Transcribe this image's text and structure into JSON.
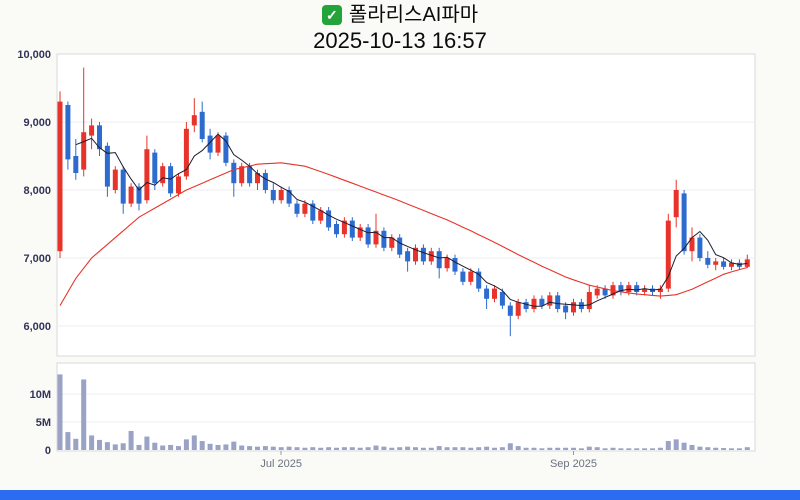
{
  "header": {
    "title": "폴라리스AI파마",
    "datetime": "2025-10-13 16:57",
    "check_glyph": "✓"
  },
  "colors": {
    "up": "#e8332a",
    "down": "#2d6bce",
    "ma_short": "#1c1c30",
    "ma_long": "#e8332a",
    "volume": "#9aa3c6",
    "grid": "#ececf1",
    "panel_border": "#d9d9de",
    "check_green": "#23a33a",
    "footer_bar": "#2b6cf0",
    "background": "#fafaf6"
  },
  "chart_data": {
    "type": "candlestick",
    "title": "폴라리스AI파마",
    "subtitle": "2025-10-13 16:57",
    "ylim": [
      5560,
      10060
    ],
    "volume_ylim_millions": [
      0,
      15.5
    ],
    "volume_unit": "millions of shares",
    "grid": true,
    "y_ticks": [
      {
        "label": "10,000",
        "value": 10000
      },
      {
        "label": "9,000",
        "value": 9000
      },
      {
        "label": "8,000",
        "value": 8000
      },
      {
        "label": "7,000",
        "value": 7000
      },
      {
        "label": "6,000",
        "value": 6000
      }
    ],
    "volume_ticks": [
      {
        "label": "10M",
        "value": 10
      },
      {
        "label": "5M",
        "value": 5
      },
      {
        "label": "0",
        "value": 0
      }
    ],
    "x_ticks": [
      {
        "label": "Jul 2025",
        "index": 28
      },
      {
        "label": "Sep 2025",
        "index": 65
      }
    ],
    "lines": [
      {
        "name": "short-term moving average",
        "color_key": "ma_short"
      },
      {
        "name": "long-term moving average",
        "color_key": "ma_long"
      }
    ],
    "ma_short_window": 5,
    "ma_long_anchors": [
      [
        0,
        6300
      ],
      [
        2,
        6700
      ],
      [
        4,
        7000
      ],
      [
        7,
        7300
      ],
      [
        10,
        7600
      ],
      [
        13,
        7800
      ],
      [
        16,
        8000
      ],
      [
        19,
        8150
      ],
      [
        22,
        8300
      ],
      [
        25,
        8380
      ],
      [
        28,
        8400
      ],
      [
        31,
        8350
      ],
      [
        34,
        8230
      ],
      [
        37,
        8100
      ],
      [
        40,
        7970
      ],
      [
        43,
        7840
      ],
      [
        46,
        7700
      ],
      [
        49,
        7560
      ],
      [
        52,
        7400
      ],
      [
        55,
        7230
      ],
      [
        58,
        7050
      ],
      [
        61,
        6880
      ],
      [
        64,
        6720
      ],
      [
        67,
        6600
      ],
      [
        70,
        6520
      ],
      [
        73,
        6470
      ],
      [
        76,
        6440
      ],
      [
        78,
        6460
      ],
      [
        80,
        6540
      ],
      [
        82,
        6650
      ],
      [
        84,
        6760
      ],
      [
        86,
        6830
      ],
      [
        87,
        6860
      ]
    ],
    "candles": [
      [
        7100,
        9450,
        7000,
        9300
      ],
      [
        9250,
        9300,
        8300,
        8450
      ],
      [
        8500,
        8750,
        8150,
        8250
      ],
      [
        8300,
        9800,
        8200,
        8850
      ],
      [
        8800,
        9050,
        8600,
        8950
      ],
      [
        8950,
        9000,
        8500,
        8600
      ],
      [
        8650,
        8700,
        7900,
        8050
      ],
      [
        8000,
        8350,
        7950,
        8300
      ],
      [
        8300,
        8350,
        7650,
        7800
      ],
      [
        7800,
        8100,
        7750,
        8050
      ],
      [
        8050,
        8100,
        7700,
        7800
      ],
      [
        7850,
        8800,
        7800,
        8600
      ],
      [
        8550,
        8600,
        8000,
        8100
      ],
      [
        8100,
        8400,
        8050,
        8350
      ],
      [
        8350,
        8400,
        7900,
        7950
      ],
      [
        7950,
        8250,
        7900,
        8200
      ],
      [
        8200,
        9000,
        8150,
        8900
      ],
      [
        8950,
        9350,
        8850,
        9100
      ],
      [
        9150,
        9300,
        8700,
        8750
      ],
      [
        8800,
        8900,
        8450,
        8550
      ],
      [
        8550,
        8850,
        8500,
        8800
      ],
      [
        8800,
        8850,
        8350,
        8400
      ],
      [
        8400,
        8450,
        7900,
        8100
      ],
      [
        8100,
        8400,
        8050,
        8350
      ],
      [
        8350,
        8400,
        8050,
        8100
      ],
      [
        8100,
        8300,
        8000,
        8250
      ],
      [
        8250,
        8300,
        7950,
        8000
      ],
      [
        8000,
        8100,
        7800,
        7850
      ],
      [
        7850,
        8050,
        7800,
        8000
      ],
      [
        8000,
        8050,
        7750,
        7800
      ],
      [
        7800,
        7850,
        7600,
        7650
      ],
      [
        7650,
        7850,
        7600,
        7800
      ],
      [
        7800,
        7850,
        7500,
        7550
      ],
      [
        7550,
        7750,
        7500,
        7700
      ],
      [
        7700,
        7750,
        7400,
        7450
      ],
      [
        7500,
        7550,
        7300,
        7350
      ],
      [
        7350,
        7600,
        7300,
        7550
      ],
      [
        7550,
        7600,
        7250,
        7300
      ],
      [
        7300,
        7500,
        7250,
        7450
      ],
      [
        7450,
        7500,
        7150,
        7200
      ],
      [
        7200,
        7650,
        7150,
        7400
      ],
      [
        7400,
        7450,
        7100,
        7150
      ],
      [
        7150,
        7350,
        7100,
        7300
      ],
      [
        7300,
        7350,
        7000,
        7050
      ],
      [
        7100,
        7150,
        6800,
        6950
      ],
      [
        6950,
        7200,
        6900,
        7150
      ],
      [
        7150,
        7200,
        6900,
        6950
      ],
      [
        6950,
        7150,
        6900,
        7100
      ],
      [
        7100,
        7150,
        6700,
        6850
      ],
      [
        6850,
        7050,
        6800,
        7000
      ],
      [
        7000,
        7050,
        6750,
        6800
      ],
      [
        6800,
        6850,
        6600,
        6650
      ],
      [
        6650,
        6850,
        6600,
        6800
      ],
      [
        6800,
        6850,
        6500,
        6550
      ],
      [
        6550,
        6600,
        6250,
        6400
      ],
      [
        6400,
        6600,
        6350,
        6550
      ],
      [
        6500,
        6550,
        6250,
        6300
      ],
      [
        6300,
        6350,
        5850,
        6150
      ],
      [
        6150,
        6400,
        6100,
        6350
      ],
      [
        6350,
        6400,
        6200,
        6250
      ],
      [
        6250,
        6450,
        6200,
        6400
      ],
      [
        6400,
        6450,
        6250,
        6300
      ],
      [
        6300,
        6500,
        6250,
        6450
      ],
      [
        6450,
        6500,
        6200,
        6250
      ],
      [
        6300,
        6350,
        6100,
        6200
      ],
      [
        6200,
        6400,
        6150,
        6350
      ],
      [
        6350,
        6400,
        6200,
        6250
      ],
      [
        6250,
        6600,
        6200,
        6500
      ],
      [
        6450,
        6600,
        6400,
        6550
      ],
      [
        6550,
        6600,
        6400,
        6450
      ],
      [
        6450,
        6650,
        6400,
        6600
      ],
      [
        6600,
        6650,
        6450,
        6500
      ],
      [
        6500,
        6650,
        6450,
        6600
      ],
      [
        6600,
        6650,
        6450,
        6500
      ],
      [
        6500,
        6600,
        6450,
        6550
      ],
      [
        6550,
        6600,
        6450,
        6500
      ],
      [
        6500,
        6600,
        6400,
        6550
      ],
      [
        6550,
        7650,
        6500,
        7550
      ],
      [
        7600,
        8150,
        7450,
        8000
      ],
      [
        7950,
        8000,
        7050,
        7100
      ],
      [
        7100,
        7450,
        6950,
        7300
      ],
      [
        7300,
        7350,
        6950,
        7000
      ],
      [
        7000,
        7100,
        6850,
        6900
      ],
      [
        6900,
        7000,
        6820,
        6950
      ],
      [
        6950,
        7000,
        6830,
        6870
      ],
      [
        6870,
        6980,
        6820,
        6930
      ],
      [
        6930,
        6980,
        6830,
        6870
      ],
      [
        6870,
        7050,
        6850,
        6980
      ]
    ],
    "volumes_millions": [
      13.5,
      3.2,
      2.0,
      12.6,
      2.6,
      1.8,
      1.4,
      1.0,
      1.2,
      3.4,
      0.9,
      2.4,
      1.3,
      0.8,
      0.9,
      0.7,
      1.9,
      2.6,
      1.6,
      1.1,
      0.9,
      1.0,
      1.5,
      0.8,
      0.7,
      0.6,
      0.7,
      0.6,
      0.5,
      0.6,
      0.5,
      0.4,
      0.5,
      0.4,
      0.5,
      0.4,
      0.5,
      0.5,
      0.4,
      0.5,
      0.8,
      0.6,
      0.4,
      0.5,
      0.6,
      0.5,
      0.4,
      0.4,
      0.7,
      0.5,
      0.5,
      0.5,
      0.4,
      0.5,
      0.6,
      0.4,
      0.5,
      1.2,
      0.7,
      0.4,
      0.4,
      0.3,
      0.4,
      0.4,
      0.4,
      0.4,
      0.3,
      0.6,
      0.5,
      0.3,
      0.4,
      0.3,
      0.3,
      0.3,
      0.3,
      0.3,
      0.4,
      1.6,
      1.9,
      1.3,
      0.9,
      0.6,
      0.5,
      0.4,
      0.35,
      0.3,
      0.3,
      0.5
    ]
  }
}
